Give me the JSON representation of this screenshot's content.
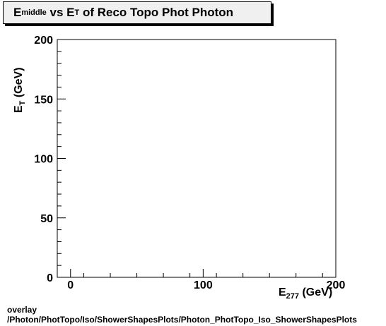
{
  "chart_data": {
    "type": "scatter",
    "title": {
      "main": "E",
      "main_sub": "middle",
      "vs": " vs E",
      "vs_sub": "T",
      "rest": " of Reco Topo Phot Photon"
    },
    "xlabel": {
      "main": "E",
      "sub": "277",
      "unit": " (GeV)"
    },
    "ylabel": {
      "main": "E",
      "sub": "T",
      "unit": " (GeV)"
    },
    "xlim": [
      -10,
      200
    ],
    "ylim": [
      0,
      200
    ],
    "x_ticks": [
      0,
      100,
      200
    ],
    "y_ticks": [
      0,
      50,
      100,
      150,
      200
    ],
    "points": [],
    "grid": false
  },
  "footer": {
    "line1": "overlay",
    "line2": "/Photon/PhotTopo/Iso/ShowerShapesPlots/Photon_PhotTopo_Iso_ShowerShapesPlots"
  }
}
